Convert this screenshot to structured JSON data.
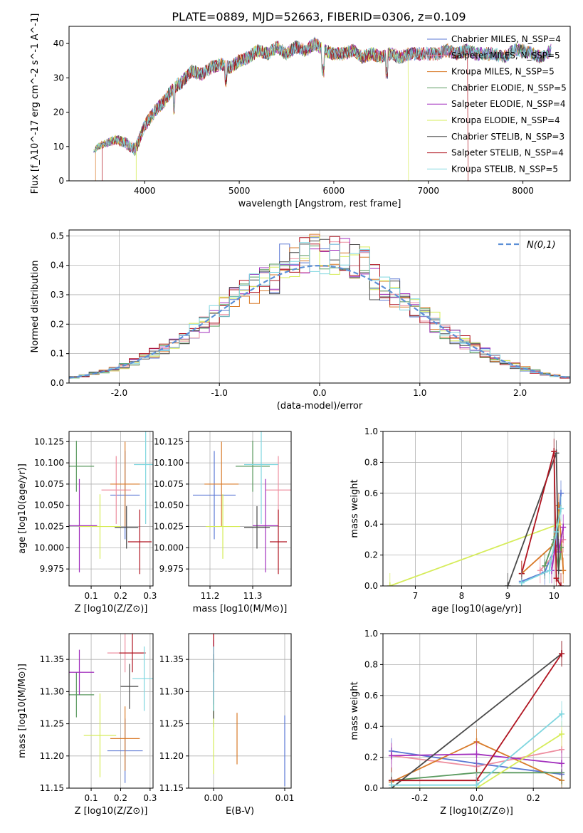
{
  "figure_title": "PLATE=0889, MJD=52663, FIBERID=0306, z=0.109",
  "colors": {
    "chabrier_miles": "#5b78d4",
    "salpeter_miles": "#ee8fa0",
    "kroupa_miles": "#d97b2a",
    "chabrier_elodie": "#5a9a5f",
    "salpeter_elodie": "#a22fbd",
    "kroupa_elodie": "#d6ec5a",
    "chabrier_stelib": "#4a4a4a",
    "salpeter_stelib": "#b01420",
    "kroupa_stelib": "#7fd6df",
    "normal": "#5b8fd6"
  },
  "chart_data": [
    {
      "id": "spectrum",
      "type": "line",
      "xlabel": "wavelength [Angstrom, rest frame]",
      "ylabel": "Flux [f_λ10^-17 erg cm^-2 s^-1 A^-1]",
      "xlim": [
        3200,
        8500
      ],
      "ylim": [
        0,
        45
      ],
      "xticks": [
        4000,
        5000,
        6000,
        7000,
        8000
      ],
      "yticks": [
        0,
        10,
        20,
        30,
        40
      ],
      "legend": [
        "Chabrier MILES, N_SSP=4",
        "Salpeter MILES, N_SSP=5",
        "Kroupa MILES, N_SSP=5",
        "Chabrier ELODIE, N_SSP=5",
        "Salpeter ELODIE, N_SSP=4",
        "Kroupa ELODIE, N_SSP=4",
        "Chabrier STELIB, N_SSP=3",
        "Salpeter STELIB, N_SSP=4",
        "Kroupa STELIB, N_SSP=5"
      ],
      "legend_loc": "upper right",
      "x": [
        3450,
        3500,
        3600,
        3700,
        3800,
        3900,
        4000,
        4100,
        4200,
        4300,
        4400,
        4500,
        4600,
        4700,
        4800,
        4900,
        5000,
        5100,
        5200,
        5300,
        5400,
        5500,
        5600,
        5700,
        5800,
        5900,
        6000,
        6100,
        6200,
        6300,
        6400,
        6500,
        6600,
        6700,
        6800,
        6900,
        7000,
        7100,
        7200,
        7300,
        7400,
        7500,
        7600,
        7700,
        7800,
        7900,
        8000,
        8100,
        8200,
        8300
      ],
      "y": [
        8,
        10,
        11,
        12,
        11,
        9,
        16,
        20,
        23,
        27,
        29,
        32,
        31,
        33,
        34,
        33,
        35,
        36,
        38,
        37,
        39,
        37,
        39,
        38,
        40,
        38,
        37,
        37,
        38,
        36,
        37,
        36,
        37,
        36,
        37,
        37,
        37,
        37,
        38,
        37,
        38,
        37,
        37,
        37,
        36,
        38,
        38,
        37,
        36,
        38
      ]
    },
    {
      "id": "residuals",
      "type": "histogram",
      "xlabel": "(data-model)/error",
      "ylabel": "Normed distribution",
      "xlim": [
        -2.5,
        2.5
      ],
      "ylim": [
        0,
        0.52
      ],
      "xticks": [
        -2,
        -1,
        0,
        1,
        2
      ],
      "yticks": [
        0.0,
        0.1,
        0.2,
        0.3,
        0.4,
        0.5
      ],
      "legend": [
        "N(0,1)"
      ],
      "legend_loc": "upper right",
      "bin_width": 0.1,
      "bins_start": -2.5
    },
    {
      "id": "age_vs_Z",
      "type": "errorbar",
      "xlabel": "Z [log10(Z/Z⊙)]",
      "ylabel": "age  [log10(age/yr)]",
      "xlim": [
        0.025,
        0.31
      ],
      "ylim": [
        9.955,
        10.137
      ],
      "xticks": [
        0.1,
        0.2,
        0.3
      ],
      "yticks": [
        9.975,
        10.0,
        10.025,
        10.05,
        10.075,
        10.1,
        10.125
      ],
      "points": [
        {
          "x": 0.215,
          "y": 10.062,
          "xerr": 0.05,
          "yerr": 0.052
        },
        {
          "x": 0.185,
          "y": 10.068,
          "xerr": 0.05,
          "yerr": 0.04
        },
        {
          "x": 0.215,
          "y": 10.075,
          "xerr": 0.05,
          "yerr": 0.05
        },
        {
          "x": 0.05,
          "y": 10.096,
          "xerr": 0.06,
          "yerr": 0.03
        },
        {
          "x": 0.06,
          "y": 10.026,
          "xerr": 0.06,
          "yerr": 0.055
        },
        {
          "x": 0.13,
          "y": 10.025,
          "xerr": 0.07,
          "yerr": 0.038
        },
        {
          "x": 0.22,
          "y": 10.024,
          "xerr": 0.04,
          "yerr": 0.025
        },
        {
          "x": 0.265,
          "y": 10.007,
          "xerr": 0.04,
          "yerr": 0.038
        },
        {
          "x": 0.285,
          "y": 10.098,
          "xerr": 0.04,
          "yerr": 0.07
        }
      ]
    },
    {
      "id": "age_vs_mass",
      "type": "errorbar",
      "xlabel": "mass [log10(M/M⊙)]",
      "ylabel": "",
      "xlim": [
        11.15,
        11.39
      ],
      "ylim": [
        9.955,
        10.137
      ],
      "xticks": [
        11.2,
        11.3
      ],
      "yticks": [
        9.975,
        10.0,
        10.025,
        10.05,
        10.075,
        10.1,
        10.125
      ],
      "points": [
        {
          "x": 11.21,
          "y": 10.062,
          "xerr": 0.05,
          "yerr": 0.052
        },
        {
          "x": 11.36,
          "y": 10.068,
          "xerr": 0.03,
          "yerr": 0.04
        },
        {
          "x": 11.227,
          "y": 10.075,
          "xerr": 0.04,
          "yerr": 0.05
        },
        {
          "x": 11.3,
          "y": 10.096,
          "xerr": 0.04,
          "yerr": 0.03
        },
        {
          "x": 11.33,
          "y": 10.026,
          "xerr": 0.03,
          "yerr": 0.055
        },
        {
          "x": 11.23,
          "y": 10.025,
          "xerr": 0.04,
          "yerr": 0.038
        },
        {
          "x": 11.31,
          "y": 10.024,
          "xerr": 0.03,
          "yerr": 0.025
        },
        {
          "x": 11.36,
          "y": 10.007,
          "xerr": 0.02,
          "yerr": 0.038
        },
        {
          "x": 11.32,
          "y": 10.098,
          "xerr": 0.04,
          "yerr": 0.07
        }
      ]
    },
    {
      "id": "massweight_vs_age",
      "type": "line",
      "xlabel": "age  [log10(age/yr)]",
      "ylabel": "mass weight",
      "xlim": [
        6.3,
        10.35
      ],
      "ylim": [
        0,
        1.0
      ],
      "xticks": [
        7,
        8,
        9,
        10
      ],
      "yticks": [
        0.0,
        0.2,
        0.4,
        0.6,
        0.8,
        1.0
      ],
      "series": [
        {
          "x": [
            9.3,
            9.8,
            10.05,
            10.15
          ],
          "y": [
            0.03,
            0.09,
            0.27,
            0.6
          ]
        },
        {
          "x": [
            9.7,
            10.0,
            10.1,
            10.2
          ],
          "y": [
            0.1,
            0.2,
            0.25,
            0.3
          ]
        },
        {
          "x": [
            9.3,
            10.0,
            10.1,
            10.2
          ],
          "y": [
            0.08,
            0.27,
            0.52,
            0.1
          ]
        },
        {
          "x": [
            9.8,
            10.0,
            10.1,
            10.15
          ],
          "y": [
            0.13,
            0.3,
            0.1,
            0.25
          ]
        },
        {
          "x": [
            9.95,
            10.05,
            10.1,
            10.2
          ],
          "y": [
            0.1,
            0.3,
            0.22,
            0.38
          ]
        },
        {
          "x": [
            6.45,
            10.1
          ],
          "y": [
            0.0,
            0.4
          ]
        },
        {
          "x": [
            9.0,
            10.05,
            10.1
          ],
          "y": [
            0.0,
            0.86,
            0.1
          ]
        },
        {
          "x": [
            9.3,
            10.0,
            10.05,
            10.15
          ],
          "y": [
            0.08,
            0.87,
            0.05,
            0.0
          ]
        },
        {
          "x": [
            9.3,
            9.9,
            10.05,
            10.15
          ],
          "y": [
            0.02,
            0.1,
            0.35,
            0.5
          ]
        }
      ]
    },
    {
      "id": "mass_vs_Z",
      "type": "errorbar",
      "xlabel": "Z [log10(Z/Z⊙)]",
      "ylabel": "mass [log10(M/M⊙)]",
      "xlim": [
        0.025,
        0.31
      ],
      "ylim": [
        11.15,
        11.39
      ],
      "xticks": [
        0.1,
        0.2,
        0.3
      ],
      "yticks": [
        11.15,
        11.2,
        11.25,
        11.3,
        11.35
      ],
      "points": [
        {
          "x": 0.215,
          "y": 11.208,
          "xerr": 0.06,
          "yerr": 0.05
        },
        {
          "x": 0.215,
          "y": 11.36,
          "xerr": 0.06,
          "yerr": 0.03
        },
        {
          "x": 0.215,
          "y": 11.227,
          "xerr": 0.05,
          "yerr": 0.05
        },
        {
          "x": 0.05,
          "y": 11.295,
          "xerr": 0.06,
          "yerr": 0.035
        },
        {
          "x": 0.06,
          "y": 11.33,
          "xerr": 0.05,
          "yerr": 0.035
        },
        {
          "x": 0.13,
          "y": 11.232,
          "xerr": 0.055,
          "yerr": 0.065
        },
        {
          "x": 0.23,
          "y": 11.308,
          "xerr": 0.03,
          "yerr": 0.035
        },
        {
          "x": 0.24,
          "y": 11.36,
          "xerr": 0.045,
          "yerr": 0.03
        },
        {
          "x": 0.28,
          "y": 11.32,
          "xerr": 0.04,
          "yerr": 0.05
        }
      ]
    },
    {
      "id": "mass_vs_ebv",
      "type": "errorbar",
      "xlabel": "E(B-V)",
      "ylabel": "",
      "xlim": [
        -0.0035,
        0.0109
      ],
      "ylim": [
        11.15,
        11.39
      ],
      "xticks": [
        0.0,
        0.01
      ],
      "yticks": [
        11.15,
        11.2,
        11.25,
        11.3,
        11.35
      ],
      "points": [
        {
          "x": 0.01,
          "y": 11.208,
          "xerr": 0,
          "yerr": 0.055
        },
        {
          "x": 0.0,
          "y": 11.36,
          "xerr": 0,
          "yerr": 0.03
        },
        {
          "x": 0.0033,
          "y": 11.227,
          "xerr": 0,
          "yerr": 0.04
        },
        {
          "x": 0.0,
          "y": 11.295,
          "xerr": 0,
          "yerr": 0.05
        },
        {
          "x": 0.0,
          "y": 11.33,
          "xerr": 0,
          "yerr": 0.05
        },
        {
          "x": 0.0,
          "y": 11.232,
          "xerr": 0,
          "yerr": 0.06
        },
        {
          "x": 0.0,
          "y": 11.308,
          "xerr": 0,
          "yerr": 0.05
        },
        {
          "x": 0.0,
          "y": 11.36,
          "xerr": 0,
          "yerr": 0.03
        },
        {
          "x": 0.0,
          "y": 11.32,
          "xerr": 0,
          "yerr": 0.05
        }
      ]
    },
    {
      "id": "massweight_vs_Z",
      "type": "line",
      "xlabel": "Z [log10(Z/Z⊙)]",
      "ylabel": "mass weight",
      "xlim": [
        -0.33,
        0.33
      ],
      "ylim": [
        0,
        1.0
      ],
      "xticks": [
        -0.2,
        0.0,
        0.2
      ],
      "yticks": [
        0.0,
        0.2,
        0.4,
        0.6,
        0.8,
        1.0
      ],
      "series": [
        {
          "x": [
            -0.3,
            0.0,
            0.3
          ],
          "y": [
            0.24,
            0.16,
            0.09
          ]
        },
        {
          "x": [
            -0.3,
            0.0,
            0.3
          ],
          "y": [
            0.21,
            0.14,
            0.25
          ]
        },
        {
          "x": [
            -0.3,
            0.0,
            0.3
          ],
          "y": [
            0.04,
            0.3,
            0.05
          ]
        },
        {
          "x": [
            -0.3,
            0.0,
            0.3
          ],
          "y": [
            0.05,
            0.1,
            0.1
          ]
        },
        {
          "x": [
            -0.3,
            0.0,
            0.3
          ],
          "y": [
            0.21,
            0.22,
            0.16
          ]
        },
        {
          "x": [
            -0.3,
            0.0,
            0.3
          ],
          "y": [
            0.0,
            0.0,
            0.35
          ]
        },
        {
          "x": [
            -0.3,
            0.3
          ],
          "y": [
            0.0,
            0.87
          ]
        },
        {
          "x": [
            -0.3,
            0.0,
            0.3
          ],
          "y": [
            0.05,
            0.05,
            0.87
          ]
        },
        {
          "x": [
            -0.3,
            0.0,
            0.3
          ],
          "y": [
            0.02,
            0.02,
            0.48
          ]
        }
      ]
    }
  ]
}
